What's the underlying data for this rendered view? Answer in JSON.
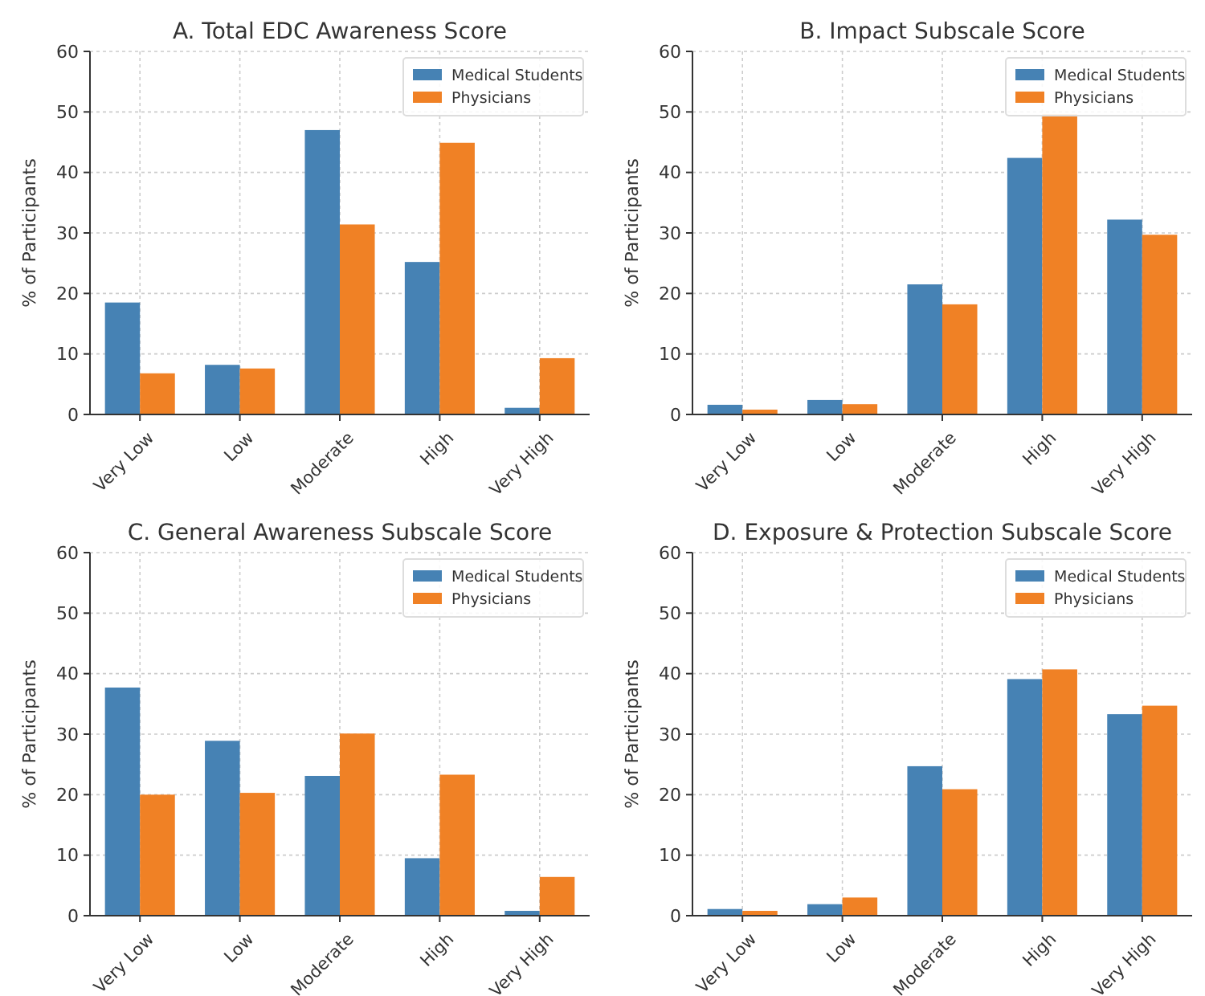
{
  "chart_data": [
    {
      "type": "bar",
      "title": "A. Total EDC Awareness Score",
      "ylabel": "% of Participants",
      "categories": [
        "Very Low",
        "Low",
        "Moderate",
        "High",
        "Very High"
      ],
      "series": [
        {
          "name": "Medical Students",
          "color": "#4682b4",
          "values": [
            18.5,
            8.2,
            47.0,
            25.2,
            1.1
          ]
        },
        {
          "name": "Physicians",
          "color": "#f08125",
          "values": [
            6.8,
            7.6,
            31.4,
            44.9,
            9.3
          ]
        }
      ],
      "ylim": [
        0,
        60
      ],
      "yticks": [
        0,
        10,
        20,
        30,
        40,
        50,
        60
      ],
      "grid": true,
      "legend": "top right"
    },
    {
      "type": "bar",
      "title": "B. Impact Subscale Score",
      "ylabel": "% of Participants",
      "categories": [
        "Very Low",
        "Low",
        "Moderate",
        "High",
        "Very High"
      ],
      "series": [
        {
          "name": "Medical Students",
          "color": "#4682b4",
          "values": [
            1.6,
            2.4,
            21.5,
            42.4,
            32.2
          ]
        },
        {
          "name": "Physicians",
          "color": "#f08125",
          "values": [
            0.8,
            1.7,
            18.2,
            49.6,
            29.7
          ]
        }
      ],
      "ylim": [
        0,
        60
      ],
      "yticks": [
        0,
        10,
        20,
        30,
        40,
        50,
        60
      ],
      "grid": true,
      "legend": "top right"
    },
    {
      "type": "bar",
      "title": "C. General Awareness Subscale Score",
      "ylabel": "% of Participants",
      "categories": [
        "Very Low",
        "Low",
        "Moderate",
        "High",
        "Very High"
      ],
      "series": [
        {
          "name": "Medical Students",
          "color": "#4682b4",
          "values": [
            37.7,
            28.9,
            23.1,
            9.5,
            0.8
          ]
        },
        {
          "name": "Physicians",
          "color": "#f08125",
          "values": [
            20.0,
            20.3,
            30.1,
            23.3,
            6.4
          ]
        }
      ],
      "ylim": [
        0,
        60
      ],
      "yticks": [
        0,
        10,
        20,
        30,
        40,
        50,
        60
      ],
      "grid": true,
      "legend": "top right"
    },
    {
      "type": "bar",
      "title": "D. Exposure & Protection Subscale Score",
      "ylabel": "% of Participants",
      "categories": [
        "Very Low",
        "Low",
        "Moderate",
        "High",
        "Very High"
      ],
      "series": [
        {
          "name": "Medical Students",
          "color": "#4682b4",
          "values": [
            1.1,
            1.9,
            24.7,
            39.1,
            33.3
          ]
        },
        {
          "name": "Physicians",
          "color": "#f08125",
          "values": [
            0.8,
            3.0,
            20.9,
            40.7,
            34.7
          ]
        }
      ],
      "ylim": [
        0,
        60
      ],
      "yticks": [
        0,
        10,
        20,
        30,
        40,
        50,
        60
      ],
      "grid": true,
      "legend": "top right"
    }
  ]
}
